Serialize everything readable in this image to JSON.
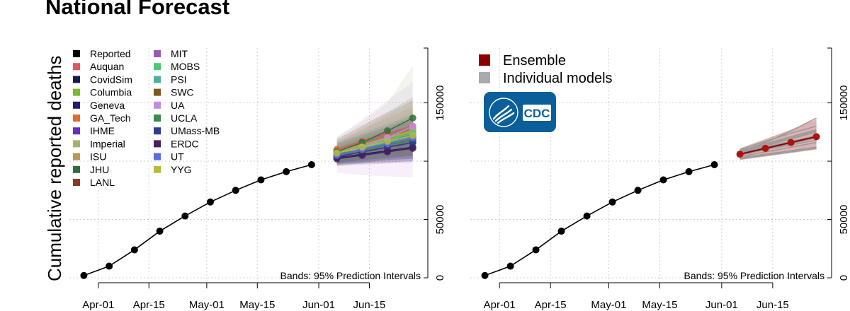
{
  "page": {
    "title": "National Forecast",
    "ylabel": "Cumulative reported deaths",
    "bands_note": "Bands: 95% Prediction Intervals"
  },
  "cdc_logo": {
    "text": "CDC"
  },
  "chart_data": [
    {
      "type": "line",
      "title": "National Forecast",
      "xlabel": "",
      "ylabel": "Cumulative reported deaths",
      "x_ticks": [
        "Apr-01",
        "Apr-15",
        "May-01",
        "May-15",
        "Jun-01",
        "Jun-15"
      ],
      "x_tick_dates": [
        "2020-04-01",
        "2020-04-15",
        "2020-05-01",
        "2020-05-15",
        "2020-06-01",
        "2020-06-15"
      ],
      "xlim": [
        "2020-03-24",
        "2020-06-30"
      ],
      "y_ticks": [
        0,
        50000,
        150000
      ],
      "ylim": [
        -3000,
        197000
      ],
      "grid": true,
      "legend_position": "top-left",
      "annotation": "Bands: 95% Prediction Intervals",
      "reported": {
        "name": "Reported",
        "color": "#000000",
        "x": [
          "2020-03-28",
          "2020-04-04",
          "2020-04-11",
          "2020-04-18",
          "2020-04-25",
          "2020-05-02",
          "2020-05-09",
          "2020-05-16",
          "2020-05-23",
          "2020-05-30"
        ],
        "y": [
          2000,
          10000,
          24000,
          40000,
          53000,
          65000,
          75000,
          84000,
          91000,
          97000
        ]
      },
      "forecast_x": [
        "2020-06-06",
        "2020-06-13",
        "2020-06-20",
        "2020-06-27"
      ],
      "series": [
        {
          "name": "Auquan",
          "color": "#e15759",
          "values": [
            110000,
            117000,
            124000,
            130000
          ],
          "lower": [
            101000,
            104000,
            106000,
            108000
          ],
          "upper": [
            119000,
            131000,
            142000,
            152000
          ]
        },
        {
          "name": "CovidSim",
          "color": "#1b1a4f",
          "values": [
            104000,
            108000,
            112000,
            116000
          ],
          "lower": [
            98000,
            99000,
            101000,
            102000
          ],
          "upper": [
            110000,
            117000,
            124000,
            131000
          ]
        },
        {
          "name": "Columbia",
          "color": "#7cbb2b",
          "values": [
            107000,
            113000,
            119000,
            125000
          ],
          "lower": [
            98000,
            100000,
            102000,
            104000
          ],
          "upper": [
            116000,
            127000,
            140000,
            152000
          ]
        },
        {
          "name": "Geneva",
          "color": "#2b1a6f",
          "values": [
            103000,
            106000,
            109000,
            112000
          ],
          "lower": [
            97000,
            98000,
            99000,
            100000
          ],
          "upper": [
            108000,
            114000,
            119000,
            124000
          ]
        },
        {
          "name": "GA_Tech",
          "color": "#e06a2c",
          "values": [
            109000,
            115000,
            121000,
            127000
          ],
          "lower": [
            100000,
            103000,
            105000,
            107000
          ],
          "upper": [
            117000,
            127000,
            137000,
            147000
          ]
        },
        {
          "name": "IHME",
          "color": "#6a2cc9",
          "values": [
            106000,
            110000,
            114000,
            118000
          ],
          "lower": [
            97000,
            98000,
            99000,
            100000
          ],
          "upper": [
            115000,
            122000,
            130000,
            138000
          ]
        },
        {
          "name": "Imperial",
          "color": "#a3b36b",
          "values": [
            108000,
            114000,
            120000,
            126000
          ],
          "lower": [
            95000,
            99000,
            102000,
            105000
          ],
          "upper": [
            121000,
            134000,
            150000,
            182000
          ]
        },
        {
          "name": "ISU",
          "color": "#b89a58",
          "values": [
            105000,
            110000,
            115000,
            120000
          ],
          "lower": [
            96000,
            98000,
            100000,
            102000
          ],
          "upper": [
            114000,
            122000,
            130000,
            140000
          ]
        },
        {
          "name": "JHU",
          "color": "#2f6e3b",
          "values": [
            108000,
            116000,
            126000,
            137000
          ],
          "lower": [
            97000,
            102000,
            108000,
            113000
          ],
          "upper": [
            119000,
            130000,
            142000,
            155000
          ]
        },
        {
          "name": "LANL",
          "color": "#8c3a1f",
          "values": [
            106000,
            111000,
            116000,
            121000
          ],
          "lower": [
            99000,
            101000,
            103000,
            105000
          ],
          "upper": [
            113000,
            121000,
            129000,
            137000
          ]
        },
        {
          "name": "MIT",
          "color": "#9b59b6",
          "values": [
            107000,
            112000,
            117000,
            122000
          ],
          "lower": [
            98000,
            100000,
            102000,
            104000
          ],
          "upper": [
            116000,
            124000,
            132000,
            140000
          ]
        },
        {
          "name": "MOBS",
          "color": "#50c878",
          "values": [
            106000,
            112000,
            118000,
            124000
          ],
          "lower": [
            97000,
            100000,
            103000,
            106000
          ],
          "upper": [
            115000,
            124000,
            133000,
            143000
          ]
        },
        {
          "name": "PSI",
          "color": "#4fb0a0",
          "values": [
            106000,
            111000,
            116000,
            121000
          ],
          "lower": [
            97000,
            99000,
            101000,
            103000
          ],
          "upper": [
            115000,
            123000,
            131000,
            139000
          ]
        },
        {
          "name": "SWC",
          "color": "#7a5a1e",
          "values": [
            105000,
            110000,
            115000,
            120000
          ],
          "lower": [
            99000,
            101000,
            103000,
            105000
          ],
          "upper": [
            111000,
            119000,
            127000,
            135000
          ]
        },
        {
          "name": "UA",
          "color": "#c58be0",
          "values": [
            105000,
            112000,
            120000,
            130000
          ],
          "lower": [
            90000,
            88000,
            87000,
            86000
          ],
          "upper": [
            120000,
            136000,
            152000,
            168000
          ]
        },
        {
          "name": "UCLA",
          "color": "#3e8a4a",
          "values": [
            106000,
            110000,
            114000,
            118000
          ],
          "lower": [
            100000,
            102000,
            104000,
            106000
          ],
          "upper": [
            112000,
            118000,
            124000,
            130000
          ]
        },
        {
          "name": "UMass-MB",
          "color": "#2e3f8f",
          "values": [
            104000,
            108000,
            112000,
            116000
          ],
          "lower": [
            98000,
            99000,
            101000,
            102000
          ],
          "upper": [
            110000,
            117000,
            124000,
            131000
          ]
        },
        {
          "name": "ERDC",
          "color": "#4a1f5c",
          "values": [
            102000,
            105000,
            108000,
            111000
          ],
          "lower": [
            96000,
            97000,
            98000,
            99000
          ],
          "upper": [
            108000,
            113000,
            118000,
            123000
          ]
        },
        {
          "name": "UT",
          "color": "#5a6ee0",
          "values": [
            105000,
            110000,
            115000,
            120000
          ],
          "lower": [
            99000,
            101000,
            103000,
            105000
          ],
          "upper": [
            111000,
            119000,
            127000,
            135000
          ]
        },
        {
          "name": "YYG",
          "color": "#b5bd3a",
          "values": [
            107000,
            112000,
            117000,
            122000
          ],
          "lower": [
            100000,
            102000,
            104000,
            106000
          ],
          "upper": [
            114000,
            122000,
            130000,
            138000
          ]
        }
      ]
    },
    {
      "type": "line",
      "xlabel": "",
      "ylabel": "",
      "x_ticks": [
        "Apr-01",
        "Apr-15",
        "May-01",
        "May-15",
        "Jun-01",
        "Jun-15"
      ],
      "x_tick_dates": [
        "2020-04-01",
        "2020-04-15",
        "2020-05-01",
        "2020-05-15",
        "2020-06-01",
        "2020-06-15"
      ],
      "xlim": [
        "2020-03-24",
        "2020-06-30"
      ],
      "y_ticks": [
        0,
        50000,
        150000
      ],
      "ylim": [
        -3000,
        197000
      ],
      "grid": true,
      "legend_position": "top-left",
      "annotation": "Bands: 95% Prediction Intervals",
      "legend": [
        {
          "name": "Ensemble",
          "color": "#8b0000"
        },
        {
          "name": "Individual models",
          "color": "#aaaaaa"
        }
      ],
      "reported": {
        "x": [
          "2020-03-28",
          "2020-04-04",
          "2020-04-11",
          "2020-04-18",
          "2020-04-25",
          "2020-05-02",
          "2020-05-09",
          "2020-05-16",
          "2020-05-23",
          "2020-05-30"
        ],
        "y": [
          2000,
          10000,
          24000,
          40000,
          53000,
          65000,
          75000,
          84000,
          91000,
          97000
        ]
      },
      "forecast_x": [
        "2020-06-06",
        "2020-06-13",
        "2020-06-20",
        "2020-06-27"
      ],
      "ensemble": {
        "name": "Ensemble",
        "color": "#8b0000",
        "values": [
          106000,
          111000,
          116000,
          121000
        ],
        "lower": [
          101000,
          104000,
          107000,
          110000
        ],
        "upper": [
          111000,
          119000,
          127000,
          136000
        ]
      },
      "individual_models": [
        [
          110000,
          117000,
          124000,
          130000
        ],
        [
          104000,
          108000,
          112000,
          116000
        ],
        [
          107000,
          113000,
          119000,
          125000
        ],
        [
          103000,
          106000,
          109000,
          112000
        ],
        [
          109000,
          115000,
          121000,
          127000
        ],
        [
          106000,
          110000,
          114000,
          118000
        ],
        [
          108000,
          114000,
          120000,
          126000
        ],
        [
          105000,
          110000,
          115000,
          120000
        ],
        [
          108000,
          116000,
          126000,
          137000
        ],
        [
          106000,
          111000,
          116000,
          121000
        ],
        [
          107000,
          112000,
          117000,
          122000
        ],
        [
          102000,
          105000,
          108000,
          111000
        ]
      ]
    }
  ]
}
